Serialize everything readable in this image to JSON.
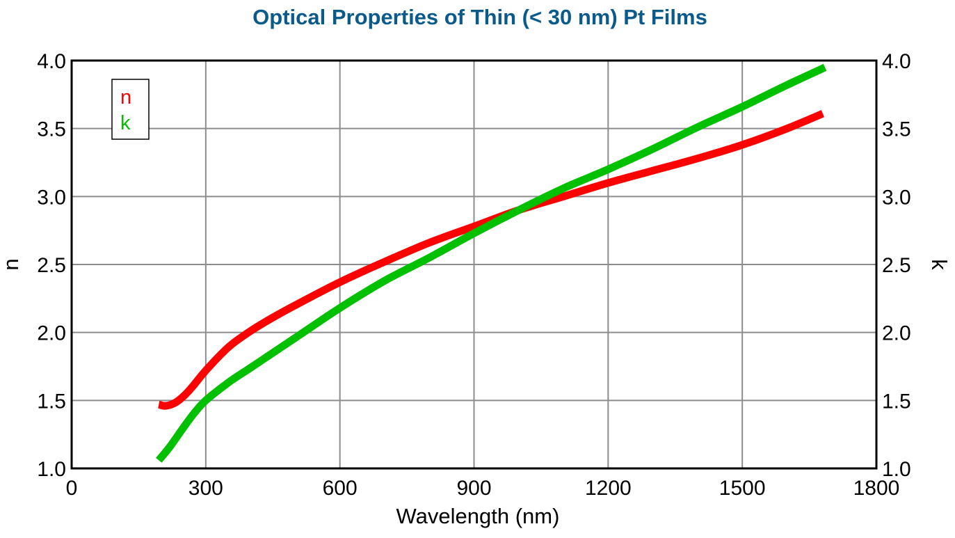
{
  "chart_data": {
    "type": "line",
    "title": "Optical Properties of Thin (< 30 nm) Pt Films",
    "xlabel": "Wavelength (nm)",
    "ylabel_left": "n",
    "ylabel_right": "k",
    "xlim": [
      0,
      1800
    ],
    "ylim": [
      1.0,
      4.0
    ],
    "x_ticks": [
      "0",
      "300",
      "600",
      "900",
      "1200",
      "1500",
      "1800"
    ],
    "y_ticks": [
      "1.0",
      "1.5",
      "2.0",
      "2.5",
      "3.0",
      "3.5",
      "4.0"
    ],
    "grid": true,
    "legend_position": "top-left",
    "colors": {
      "title": "#0b5a8c",
      "n": "#ff0000",
      "k": "#00c000",
      "grid": "#8c8c8c"
    },
    "series": [
      {
        "name": "n",
        "axis": "left",
        "x": [
          195,
          210,
          230,
          250,
          270,
          300,
          350,
          400,
          450,
          500,
          600,
          700,
          800,
          900,
          1000,
          1100,
          1200,
          1300,
          1400,
          1500,
          1600,
          1680
        ],
        "y": [
          1.47,
          1.46,
          1.48,
          1.53,
          1.6,
          1.72,
          1.89,
          2.01,
          2.11,
          2.2,
          2.37,
          2.52,
          2.66,
          2.78,
          2.9,
          3.0,
          3.1,
          3.19,
          3.28,
          3.38,
          3.5,
          3.61
        ]
      },
      {
        "name": "k",
        "axis": "right",
        "x": [
          195,
          220,
          250,
          275,
          300,
          350,
          400,
          500,
          600,
          700,
          800,
          900,
          1000,
          1100,
          1200,
          1300,
          1400,
          1500,
          1600,
          1685
        ],
        "y": [
          1.06,
          1.16,
          1.3,
          1.41,
          1.5,
          1.63,
          1.74,
          1.96,
          2.18,
          2.38,
          2.55,
          2.73,
          2.9,
          3.06,
          3.2,
          3.35,
          3.51,
          3.66,
          3.82,
          3.95
        ]
      }
    ]
  }
}
